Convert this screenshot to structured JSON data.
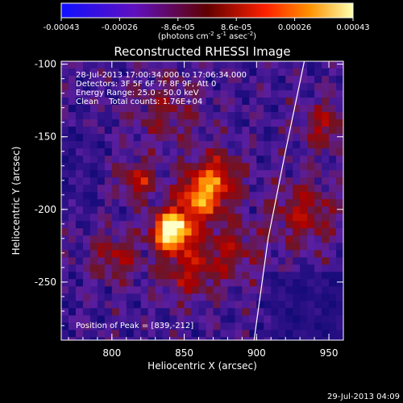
{
  "chart_data": {
    "type": "heatmap",
    "title": "Reconstructed RHESSI Image",
    "xlabel": "Heliocentric X (arcsec)",
    "ylabel": "Heliocentric Y (arcsec)",
    "xlim": [
      765,
      960
    ],
    "ylim": [
      -290,
      -98
    ],
    "xticks": [
      800,
      850,
      900,
      950
    ],
    "yticks": [
      -100,
      -150,
      -200,
      -250
    ],
    "colorbar": {
      "ticks": [
        "-0.00043",
        "-0.00026",
        "-8.6e-05",
        "8.6e-05",
        "0.00026",
        "0.00043"
      ],
      "min": -0.00043,
      "max": 0.00043,
      "label_main": "(photons cm",
      "label_exp1": "-2",
      "label_mid1": " s",
      "label_exp2": "-1",
      "label_mid2": " asec",
      "label_exp3": "-2",
      "label_end": ")"
    },
    "info_lines": [
      "28-Jul-2013 17:00:34.000 to 17:06:34.000",
      "Detectors: 3F 5F 6F 7F 8F 9F, Att 0",
      "Energy Range: 25.0 - 50.0 keV",
      "Clean    Total counts: 1.76E+04"
    ],
    "peak_label": "Position of Peak = [839,-212]",
    "peak": {
      "x": 839,
      "y": -212
    },
    "sources": [
      {
        "x": 839,
        "y": -212,
        "amplitude": 1.0,
        "sigma": 9
      },
      {
        "x": 858,
        "y": -190,
        "amplitude": 0.55,
        "sigma": 11
      },
      {
        "x": 870,
        "y": -175,
        "amplitude": 0.4,
        "sigma": 12
      },
      {
        "x": 815,
        "y": -178,
        "amplitude": 0.35,
        "sigma": 9
      },
      {
        "x": 850,
        "y": -240,
        "amplitude": 0.3,
        "sigma": 14
      },
      {
        "x": 800,
        "y": -230,
        "amplitude": 0.28,
        "sigma": 12
      },
      {
        "x": 880,
        "y": -225,
        "amplitude": 0.25,
        "sigma": 15
      },
      {
        "x": 930,
        "y": -200,
        "amplitude": 0.3,
        "sigma": 16
      },
      {
        "x": 945,
        "y": -140,
        "amplitude": 0.28,
        "sigma": 12
      },
      {
        "x": 835,
        "y": -130,
        "amplitude": 0.2,
        "sigma": 18
      }
    ],
    "limb_points": [
      [
        933,
        -98
      ],
      [
        920,
        -160
      ],
      [
        908,
        -220
      ],
      [
        898,
        -292
      ]
    ],
    "timestamp": "29-Jul-2013 04:09"
  }
}
